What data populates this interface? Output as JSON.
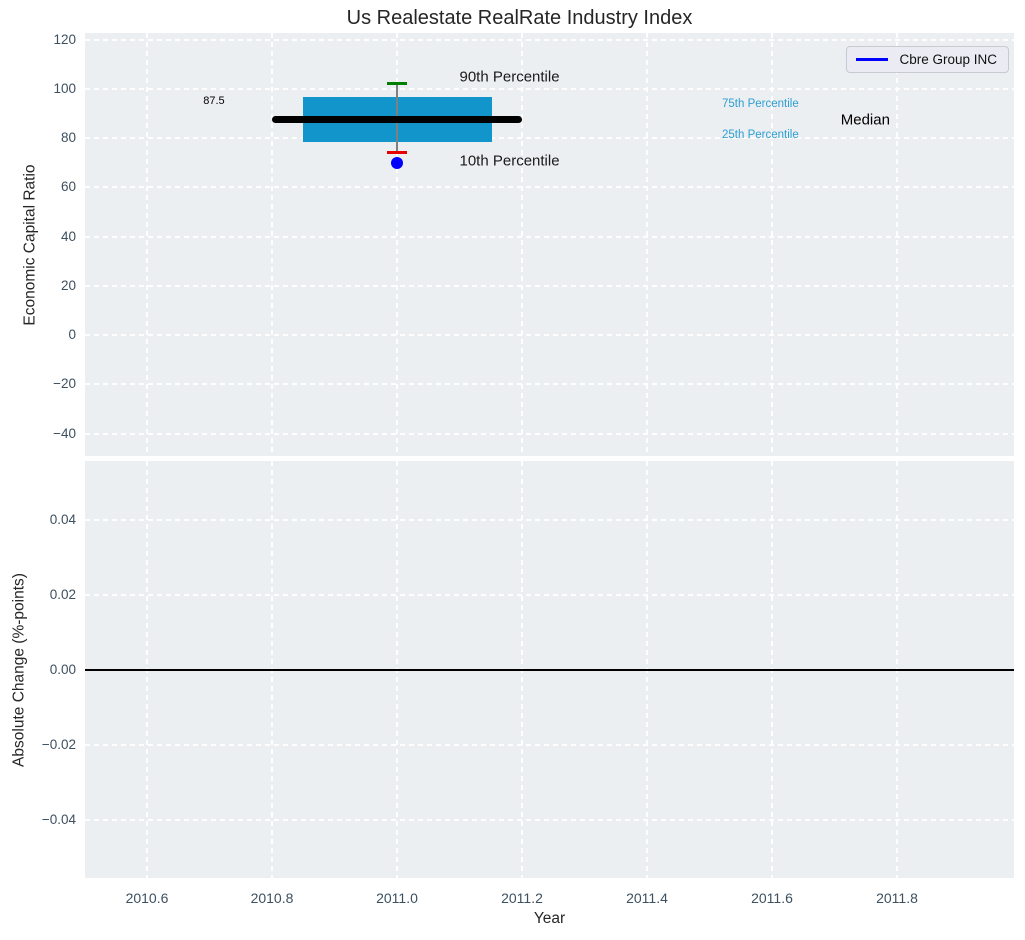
{
  "figure": {
    "title": "Us Realestate RealRate Industry Index",
    "xlabel": "Year"
  },
  "legend": {
    "label": "Cbre Group INC",
    "line_color": "#0000ff",
    "position": "upper right"
  },
  "palette": {
    "axes_bg": "#eceff1",
    "grid": "#ffffff",
    "tick_text": "#3d5060",
    "box_fill": "#1295cb",
    "median_line": "#000000",
    "p90_cap": "#007f00",
    "p10_cap": "#e60000",
    "whisker": "#7f7f7f",
    "company_marker": "#0000ff",
    "percentile_text": "#2d9fd2"
  },
  "chart_data": [
    {
      "type": "boxplot",
      "ylabel": "Economic Capital Ratio",
      "xlim": [
        2010.5008,
        2011.9872
      ],
      "ylim": [
        -49.1,
        122.64
      ],
      "grid": true,
      "xticks": [
        2010.6,
        2010.8,
        2011.0,
        2011.2,
        2011.4,
        2011.6,
        2011.8
      ],
      "xtick_labels_visible": false,
      "yticks": [
        120,
        100,
        80,
        60,
        40,
        20,
        0,
        -20,
        -40
      ],
      "ytick_labels": [
        "120",
        "100",
        "80",
        "60",
        "40",
        "20",
        "0",
        "−20",
        "−40"
      ],
      "box": {
        "x_center": 2011.0,
        "box_x_range": [
          2010.85,
          2011.152
        ],
        "median_line_x_range": [
          2010.8,
          2011.2
        ],
        "cap_half_width": 0.016,
        "p90": 102,
        "p75": 96.5,
        "median": 87.5,
        "p25": 78.5,
        "p10": 74,
        "company": {
          "name": "Cbre Group INC",
          "value": 70
        }
      },
      "annotations": [
        {
          "id": "median-value",
          "text": "87.5",
          "x": 2010.69,
          "y": 95,
          "color": "#000000",
          "size": 11
        },
        {
          "id": "p90-label",
          "text": "90th Percentile",
          "x": 2011.1,
          "y": 104.8,
          "color": "#1a1a1a",
          "size": 15
        },
        {
          "id": "p10-label",
          "text": "10th Percentile",
          "x": 2011.1,
          "y": 70.5,
          "color": "#1a1a1a",
          "size": 15
        },
        {
          "id": "p75-label",
          "text": "75th Percentile",
          "x": 2011.52,
          "y": 93.8,
          "color": "#2d9fd2",
          "size": 11.5
        },
        {
          "id": "p25-label",
          "text": "25th Percentile",
          "x": 2011.52,
          "y": 81.2,
          "color": "#2d9fd2",
          "size": 11.5
        },
        {
          "id": "median-label",
          "text": "Median",
          "x": 2011.71,
          "y": 87.3,
          "color": "#000000",
          "size": 15
        }
      ]
    },
    {
      "type": "line",
      "ylabel": "Absolute Change (%-points)",
      "xlim": [
        2010.5008,
        2011.9872
      ],
      "ylim": [
        -0.0555,
        0.0557
      ],
      "grid": true,
      "xticks": [
        2010.6,
        2010.8,
        2011.0,
        2011.2,
        2011.4,
        2011.6,
        2011.8
      ],
      "xtick_labels": [
        "2010.6",
        "2010.8",
        "2011.0",
        "2011.2",
        "2011.4",
        "2011.6",
        "2011.8"
      ],
      "yticks": [
        0.04,
        0.02,
        0,
        -0.02,
        -0.04
      ],
      "ytick_labels": [
        "0.04",
        "0.02",
        "0.00",
        "−0.02",
        "−0.04"
      ],
      "zero_line_y": 0.0,
      "series": []
    }
  ]
}
